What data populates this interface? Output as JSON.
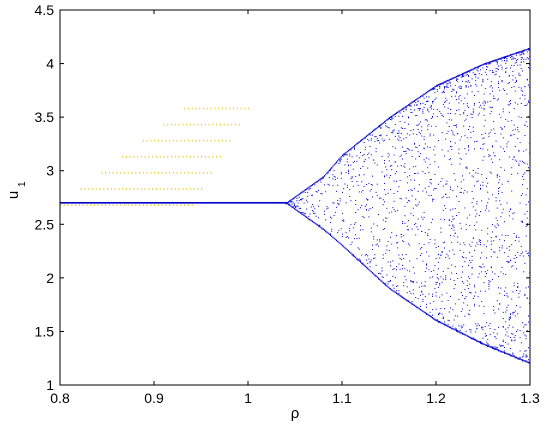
{
  "chart_data": {
    "type": "scatter",
    "title": "",
    "xlabel": "ρ",
    "ylabel_main": "u",
    "ylabel_sub": "1",
    "xlim": [
      0.8,
      1.3
    ],
    "ylim": [
      1,
      4.5
    ],
    "x_ticks": [
      "0.8",
      "0.9",
      "1",
      "1.1",
      "1.2",
      "1.3"
    ],
    "x_tick_values": [
      0.8,
      0.9,
      1.0,
      1.1,
      1.2,
      1.3
    ],
    "y_ticks": [
      "1",
      "1.5",
      "2",
      "2.5",
      "3",
      "3.5",
      "4",
      "4.5"
    ],
    "y_tick_values": [
      1,
      1.5,
      2,
      2.5,
      3,
      3.5,
      4,
      4.5
    ],
    "grid": false,
    "legend": "none",
    "series": [
      {
        "kind": "bifurcation",
        "color": "#0000cc",
        "fixed_point_value": 2.7,
        "fixed_point_x_range": [
          0.8,
          1.04
        ],
        "onset_x": 1.04,
        "envelope_upper": [
          [
            1.04,
            2.7
          ],
          [
            1.08,
            2.95
          ],
          [
            1.1,
            3.15
          ],
          [
            1.15,
            3.5
          ],
          [
            1.2,
            3.8
          ],
          [
            1.25,
            4.0
          ],
          [
            1.3,
            4.15
          ]
        ],
        "envelope_lower": [
          [
            1.04,
            2.7
          ],
          [
            1.08,
            2.45
          ],
          [
            1.1,
            2.3
          ],
          [
            1.15,
            1.9
          ],
          [
            1.2,
            1.6
          ],
          [
            1.25,
            1.38
          ],
          [
            1.3,
            1.2
          ]
        ]
      }
    ],
    "highlight_color": "#f2d65a"
  }
}
